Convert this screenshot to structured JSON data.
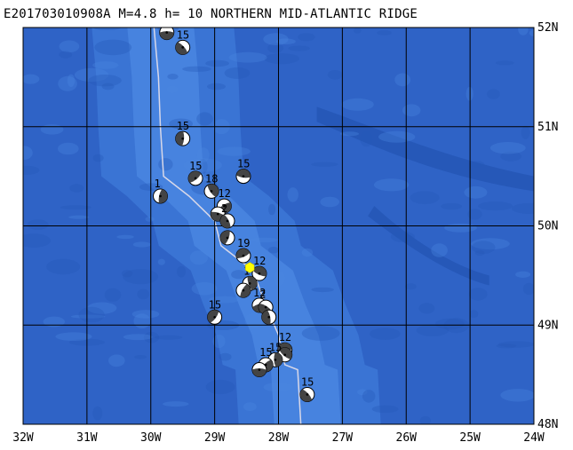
{
  "title": "E201703010908A M=4.8 h= 10 NORTHERN MID-ATLANTIC RIDGE",
  "map": {
    "lon_range": [
      -32,
      -24
    ],
    "lat_range": [
      48,
      52
    ],
    "colors": {
      "deep_ocean": "#2f63c6",
      "mid_ocean": "#3a74d4",
      "ridge": "#4a86e0",
      "trench": "#2658b8",
      "grid": "#000000",
      "ridge_line": "#d8d8e8",
      "epicenter": "#ffff00"
    },
    "lon_ticks": [
      {
        "value": -32,
        "label": "32W"
      },
      {
        "value": -31,
        "label": "31W"
      },
      {
        "value": -30,
        "label": "30W"
      },
      {
        "value": -29,
        "label": "29W"
      },
      {
        "value": -28,
        "label": "28W"
      },
      {
        "value": -27,
        "label": "27W"
      },
      {
        "value": -26,
        "label": "26W"
      },
      {
        "value": -25,
        "label": "25W"
      },
      {
        "value": -24,
        "label": "24W"
      }
    ],
    "lat_ticks": [
      {
        "value": 52,
        "label": "52N"
      },
      {
        "value": 51,
        "label": "51N"
      },
      {
        "value": 50,
        "label": "50N"
      },
      {
        "value": 49,
        "label": "49N"
      },
      {
        "value": 48,
        "label": "48N"
      }
    ],
    "ridge_line": [
      [
        -29.95,
        52.0
      ],
      [
        -29.88,
        51.5
      ],
      [
        -29.85,
        51.0
      ],
      [
        -29.8,
        50.5
      ],
      [
        -29.4,
        50.3
      ],
      [
        -29.0,
        50.05
      ],
      [
        -28.9,
        49.8
      ],
      [
        -28.7,
        49.7
      ],
      [
        -28.4,
        49.55
      ],
      [
        -28.2,
        49.2
      ],
      [
        -28.0,
        48.9
      ],
      [
        -27.9,
        48.6
      ],
      [
        -27.7,
        48.55
      ],
      [
        -27.65,
        48.0
      ]
    ],
    "epicenter": {
      "lon": -28.45,
      "lat": 49.58
    },
    "events": [
      {
        "lon": -29.75,
        "lat": 51.95,
        "label": "15"
      },
      {
        "lon": -29.5,
        "lat": 51.8,
        "label": "15"
      },
      {
        "lon": -29.5,
        "lat": 50.88,
        "label": "15"
      },
      {
        "lon": -29.3,
        "lat": 50.48,
        "label": "15"
      },
      {
        "lon": -28.55,
        "lat": 50.5,
        "label": "15"
      },
      {
        "lon": -29.05,
        "lat": 50.35,
        "label": "18"
      },
      {
        "lon": -29.85,
        "lat": 50.3,
        "label": "1"
      },
      {
        "lon": -28.85,
        "lat": 50.2,
        "label": "12"
      },
      {
        "lon": -28.95,
        "lat": 50.12,
        "label": ""
      },
      {
        "lon": -28.8,
        "lat": 50.05,
        "label": "2"
      },
      {
        "lon": -28.8,
        "lat": 49.88,
        "label": ""
      },
      {
        "lon": -28.55,
        "lat": 49.7,
        "label": "19"
      },
      {
        "lon": -28.3,
        "lat": 49.52,
        "label": "12"
      },
      {
        "lon": -28.45,
        "lat": 49.42,
        "label": "1"
      },
      {
        "lon": -28.55,
        "lat": 49.35,
        "label": ""
      },
      {
        "lon": -28.3,
        "lat": 49.2,
        "label": "12"
      },
      {
        "lon": -28.2,
        "lat": 49.18,
        "label": "2"
      },
      {
        "lon": -28.15,
        "lat": 49.08,
        "label": ""
      },
      {
        "lon": -29.0,
        "lat": 49.08,
        "label": "15"
      },
      {
        "lon": -27.9,
        "lat": 48.75,
        "label": "12"
      },
      {
        "lon": -27.9,
        "lat": 48.7,
        "label": ""
      },
      {
        "lon": -28.05,
        "lat": 48.65,
        "label": "15"
      },
      {
        "lon": -28.2,
        "lat": 48.6,
        "label": "15"
      },
      {
        "lon": -28.3,
        "lat": 48.55,
        "label": ""
      },
      {
        "lon": -27.55,
        "lat": 48.3,
        "label": "15"
      }
    ]
  }
}
